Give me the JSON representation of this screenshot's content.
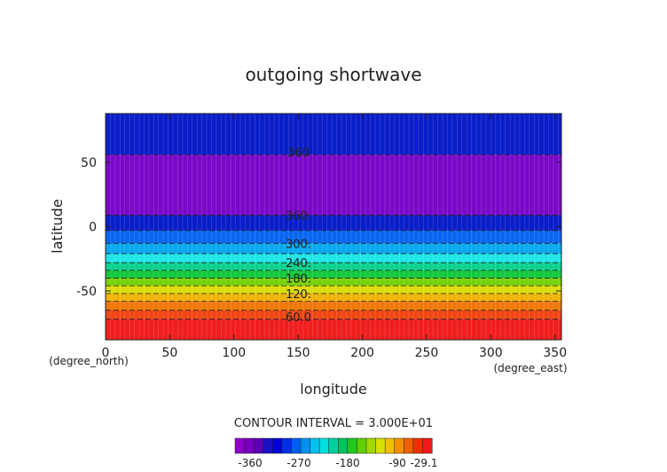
{
  "chart_data": {
    "type": "heatmap",
    "title": "outgoing shortwave",
    "xlabel": "longitude",
    "ylabel": "latitude",
    "x_units": "(degree_east)",
    "y_units": "(degree_north)",
    "xlim": [
      0,
      355
    ],
    "ylim": [
      -88,
      88
    ],
    "x_ticks": [
      0,
      50,
      100,
      150,
      200,
      250,
      300,
      350
    ],
    "y_ticks": [
      50,
      0,
      -50
    ],
    "contour_interval_text": "CONTOUR INTERVAL = 3.000E+01",
    "colorbar": {
      "colors": [
        "#8f00c8",
        "#7a00c0",
        "#5c00b8",
        "#1a10c0",
        "#0000d8",
        "#0030e0",
        "#0060f0",
        "#0090f0",
        "#00c0f0",
        "#00e0e0",
        "#00d0a0",
        "#00c060",
        "#20c820",
        "#60d000",
        "#a0d800",
        "#d8e000",
        "#f0c000",
        "#f09000",
        "#f06000",
        "#f03000",
        "#f01818"
      ],
      "tick_labels": [
        "-360",
        "-270",
        "-180",
        "-90",
        "-29.1"
      ]
    },
    "bands": [
      {
        "lat_top": 88,
        "lat_bottom": 56,
        "color": "#0a1ec8"
      },
      {
        "lat_top": 56,
        "lat_bottom": 9,
        "color": "#7a08c8"
      },
      {
        "lat_top": 9,
        "lat_bottom": -3,
        "color": "#0a1ec8"
      },
      {
        "lat_top": -3,
        "lat_bottom": -13,
        "color": "#0a66f0"
      },
      {
        "lat_top": -13,
        "lat_bottom": -21,
        "color": "#0aa8f0"
      },
      {
        "lat_top": -21,
        "lat_bottom": -28,
        "color": "#1ee6e6"
      },
      {
        "lat_top": -28,
        "lat_bottom": -34,
        "color": "#0ad28c"
      },
      {
        "lat_top": -34,
        "lat_bottom": -40,
        "color": "#14c83c"
      },
      {
        "lat_top": -40,
        "lat_bottom": -46,
        "color": "#78d20a"
      },
      {
        "lat_top": -46,
        "lat_bottom": -52,
        "color": "#dcdc0a"
      },
      {
        "lat_top": -52,
        "lat_bottom": -58,
        "color": "#f0b40a"
      },
      {
        "lat_top": -58,
        "lat_bottom": -65,
        "color": "#f0780a"
      },
      {
        "lat_top": -65,
        "lat_bottom": -72,
        "color": "#f04614"
      },
      {
        "lat_top": -72,
        "lat_bottom": -88,
        "color": "#f01e1e"
      }
    ],
    "contour_labels": [
      {
        "text": "360",
        "lon": 135,
        "lat": 58
      },
      {
        "text": "360.",
        "lon": 135,
        "lat": 9
      },
      {
        "text": "300.",
        "lon": 135,
        "lat": -13
      },
      {
        "text": "240.",
        "lon": 135,
        "lat": -28
      },
      {
        "text": "180.",
        "lon": 135,
        "lat": -40
      },
      {
        "text": "120.",
        "lon": 135,
        "lat": -52
      },
      {
        "text": "60.0",
        "lon": 135,
        "lat": -70
      }
    ],
    "contour_line_lats": [
      56,
      9,
      -3,
      -13,
      -21,
      -28,
      -34,
      -40,
      -46,
      -52,
      -58,
      -65,
      -72
    ]
  }
}
